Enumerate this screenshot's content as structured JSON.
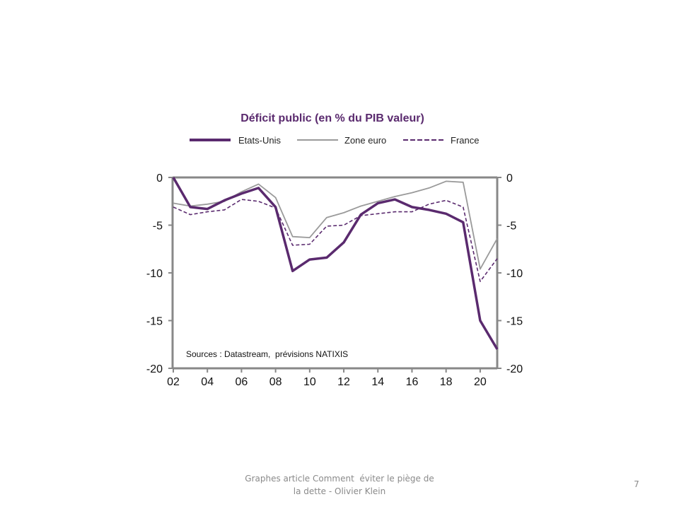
{
  "chart_data": {
    "type": "line",
    "title": "Déficit public (en % du PIB valeur)",
    "xlabel": "",
    "ylabel": "",
    "x": [
      2002,
      2003,
      2004,
      2005,
      2006,
      2007,
      2008,
      2009,
      2010,
      2011,
      2012,
      2013,
      2014,
      2015,
      2016,
      2017,
      2018,
      2019,
      2020,
      2021
    ],
    "xlim": [
      2002,
      2021
    ],
    "ylim": [
      -20,
      0
    ],
    "x_tick_labels": [
      "02",
      "04",
      "06",
      "08",
      "10",
      "12",
      "14",
      "16",
      "18",
      "20"
    ],
    "x_tick_values": [
      2002,
      2004,
      2006,
      2008,
      2010,
      2012,
      2014,
      2016,
      2018,
      2020
    ],
    "y_tick_labels_left": [
      "0",
      "-5",
      "-10",
      "-15",
      "-20"
    ],
    "y_tick_labels_right": [
      "0",
      "-5",
      "-10",
      "-15",
      "-20"
    ],
    "y_tick_values": [
      0,
      -5,
      -10,
      -15,
      -20
    ],
    "grid": false,
    "legend_position": "top",
    "annotation": "Sources : Datastream,  prévisions NATIXIS",
    "series": [
      {
        "name": "Etats-Unis",
        "color": "#5a2a6e",
        "style": "solid-thick",
        "values": [
          0,
          -3.1,
          -3.3,
          -2.4,
          -1.7,
          -1.1,
          -3.1,
          -9.8,
          -8.6,
          -8.4,
          -6.8,
          -3.9,
          -2.7,
          -2.3,
          -3.1,
          -3.4,
          -3.8,
          -4.7,
          -15.0,
          -18.0
        ]
      },
      {
        "name": "Zone euro",
        "color": "#9a9a9a",
        "style": "solid-thin",
        "values": [
          -2.7,
          -3.0,
          -2.8,
          -2.5,
          -1.5,
          -0.7,
          -2.1,
          -6.2,
          -6.3,
          -4.2,
          -3.7,
          -3.0,
          -2.5,
          -2.0,
          -1.6,
          -1.1,
          -0.4,
          -0.5,
          -9.6,
          -6.4
        ]
      },
      {
        "name": "France",
        "color": "#5a2a6e",
        "style": "dashed",
        "values": [
          -3.1,
          -3.9,
          -3.6,
          -3.4,
          -2.3,
          -2.5,
          -3.2,
          -7.1,
          -7.0,
          -5.1,
          -5.0,
          -4.0,
          -3.8,
          -3.6,
          -3.6,
          -2.8,
          -2.4,
          -3.1,
          -10.9,
          -8.5
        ]
      }
    ]
  },
  "footer": {
    "line1": "Graphes article Comment  éviter le piège de",
    "line2": "la dette - Olivier Klein",
    "page_number": "7"
  }
}
